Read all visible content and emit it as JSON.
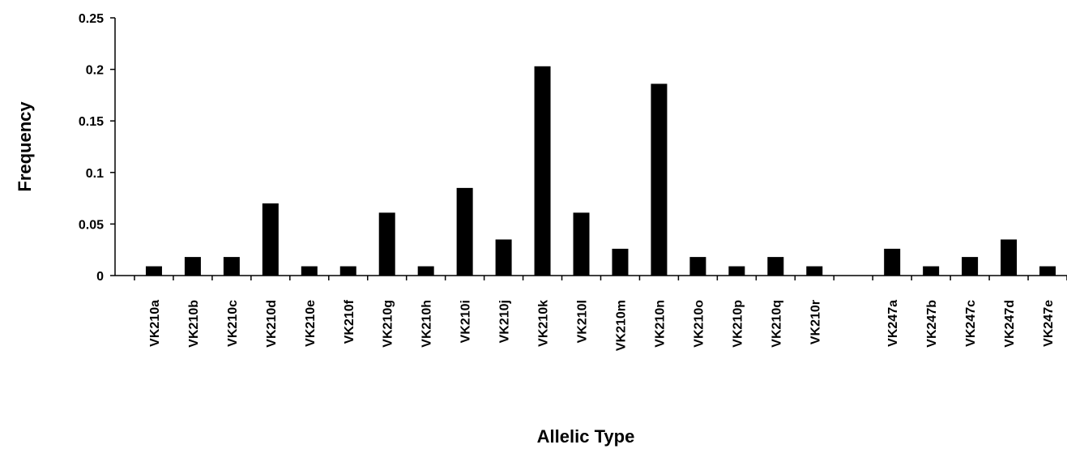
{
  "chart_data": {
    "type": "bar",
    "title": "",
    "xlabel": "Allelic Type",
    "ylabel": "Frequency",
    "ylim": [
      0,
      0.25
    ],
    "yticks": [
      "0",
      "0.05",
      "0.1",
      "0.15",
      "0.2",
      "0.25"
    ],
    "grid": false,
    "bar_color": "#000000",
    "categories": [
      "VK210a",
      "VK210b",
      "VK210c",
      "VK210d",
      "VK210e",
      "VK210f",
      "VK210g",
      "VK210h",
      "VK210i",
      "VK210j",
      "VK210k",
      "VK210l",
      "VK210m",
      "VK210n",
      "VK210o",
      "VK210p",
      "VK210q",
      "VK210r",
      "",
      "VK247a",
      "VK247b",
      "VK247c",
      "VK247d",
      "VK247e"
    ],
    "values": [
      0.009,
      0.018,
      0.018,
      0.07,
      0.009,
      0.009,
      0.061,
      0.009,
      0.085,
      0.035,
      0.203,
      0.061,
      0.026,
      0.186,
      0.018,
      0.009,
      0.018,
      0.009,
      null,
      0.026,
      0.009,
      0.018,
      0.035,
      0.009
    ]
  }
}
